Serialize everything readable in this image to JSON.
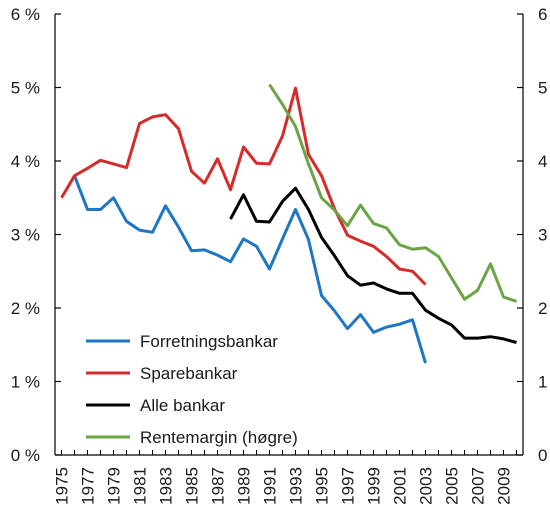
{
  "chart_data": {
    "type": "line",
    "x": [
      1975,
      1976,
      1977,
      1978,
      1979,
      1980,
      1981,
      1982,
      1983,
      1984,
      1985,
      1986,
      1987,
      1988,
      1989,
      1990,
      1991,
      1992,
      1993,
      1994,
      1995,
      1996,
      1997,
      1998,
      1999,
      2000,
      2001,
      2002,
      2003,
      2004,
      2005,
      2006,
      2007,
      2008,
      2009,
      2010
    ],
    "x_tick_labels": [
      "1975",
      "1977",
      "1979",
      "1981",
      "1983",
      "1985",
      "1987",
      "1989",
      "1991",
      "1993",
      "1995",
      "1997",
      "1999",
      "2001",
      "2003",
      "2005",
      "2007",
      "2009"
    ],
    "left_axis": {
      "ylim": [
        0,
        6
      ],
      "tick_labels": [
        "0 %",
        "1 %",
        "2 %",
        "3 %",
        "4 %",
        "5 %",
        "6 %"
      ]
    },
    "right_axis": {
      "ylim": [
        0,
        6
      ],
      "tick_labels": [
        "0",
        "1",
        "2",
        "3",
        "4",
        "5",
        "6"
      ]
    },
    "grid": false,
    "legend_position": "bottom-left",
    "series": [
      {
        "name": "Forretningsbankar",
        "color": "#1f77c4",
        "axis": "left",
        "values": [
          null,
          3.8,
          3.34,
          3.34,
          3.5,
          3.18,
          3.06,
          3.03,
          3.39,
          3.1,
          2.78,
          2.79,
          2.72,
          2.63,
          2.94,
          2.84,
          2.53,
          2.94,
          3.34,
          2.93,
          2.17,
          1.96,
          1.72,
          1.91,
          1.67,
          1.74,
          1.78,
          1.84,
          1.25,
          null,
          null,
          null,
          null,
          null,
          null,
          null
        ]
      },
      {
        "name": "Sparebankar",
        "color": "#d62b2b",
        "axis": "left",
        "values": [
          3.5,
          3.8,
          3.9,
          4.01,
          3.96,
          3.91,
          4.51,
          4.6,
          4.63,
          4.44,
          3.86,
          3.7,
          4.03,
          3.61,
          4.19,
          3.97,
          3.96,
          4.34,
          4.99,
          4.09,
          3.8,
          3.35,
          2.99,
          2.91,
          2.84,
          2.7,
          2.53,
          2.5,
          2.32,
          null,
          null,
          null,
          null,
          null,
          null,
          null
        ]
      },
      {
        "name": "Alle bankar",
        "color": "#000000",
        "axis": "left",
        "values": [
          null,
          null,
          null,
          null,
          null,
          null,
          null,
          null,
          null,
          null,
          null,
          null,
          null,
          3.21,
          3.54,
          3.18,
          3.17,
          3.45,
          3.63,
          3.34,
          2.96,
          2.71,
          2.44,
          2.31,
          2.34,
          2.26,
          2.2,
          2.2,
          1.97,
          1.86,
          1.77,
          1.59,
          1.59,
          1.61,
          1.58,
          1.53
        ]
      },
      {
        "name": "Rentemargin (høgre)",
        "color": "#6aa444",
        "axis": "right",
        "values": [
          null,
          null,
          null,
          null,
          null,
          null,
          null,
          null,
          null,
          null,
          null,
          null,
          null,
          null,
          null,
          null,
          5.04,
          4.77,
          4.47,
          3.96,
          3.5,
          3.33,
          3.12,
          3.4,
          3.15,
          3.09,
          2.86,
          2.8,
          2.82,
          2.7,
          2.41,
          2.12,
          2.24,
          2.6,
          2.15,
          2.09
        ]
      }
    ]
  }
}
